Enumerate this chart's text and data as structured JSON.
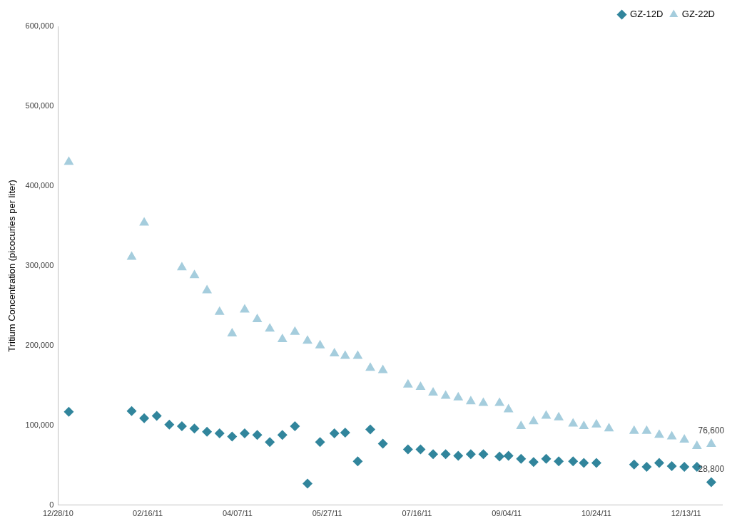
{
  "chart_data": {
    "type": "scatter",
    "ylabel": "Tritium Concentration (picocuries per liter)",
    "xlim": [
      "2010-12-28",
      "2012-01-02"
    ],
    "xticks": [
      {
        "value": "2010-12-28",
        "label": "12/28/10"
      },
      {
        "value": "2011-02-16",
        "label": "02/16/11"
      },
      {
        "value": "2011-04-07",
        "label": "04/07/11"
      },
      {
        "value": "2011-05-27",
        "label": "05/27/11"
      },
      {
        "value": "2011-07-16",
        "label": "07/16/11"
      },
      {
        "value": "2011-09-04",
        "label": "09/04/11"
      },
      {
        "value": "2011-10-24",
        "label": "10/24/11"
      },
      {
        "value": "2011-12-13",
        "label": "12/13/11"
      }
    ],
    "ylim": [
      0,
      600000
    ],
    "yticks": [
      0,
      {
        "value": 100000,
        "label": "100,000"
      },
      {
        "value": 200000,
        "label": "200,000"
      },
      {
        "value": 300000,
        "label": "300,000"
      },
      {
        "value": 400000,
        "label": "400,000"
      },
      {
        "value": 500000,
        "label": "500,000"
      },
      {
        "value": 600000,
        "label": "600,000"
      }
    ],
    "grid": false,
    "legend": "top right",
    "series": [
      {
        "name": "GZ-12D",
        "color": "#31859c",
        "marker": "diamond",
        "x": [
          "2011-01-03",
          "2011-02-07",
          "2011-02-14",
          "2011-02-21",
          "2011-02-28",
          "2011-03-07",
          "2011-03-14",
          "2011-03-21",
          "2011-03-28",
          "2011-04-04",
          "2011-04-11",
          "2011-04-18",
          "2011-04-25",
          "2011-05-02",
          "2011-05-09",
          "2011-05-16",
          "2011-05-23",
          "2011-05-31",
          "2011-06-06",
          "2011-06-13",
          "2011-06-20",
          "2011-06-27",
          "2011-07-11",
          "2011-07-18",
          "2011-07-25",
          "2011-08-01",
          "2011-08-08",
          "2011-08-15",
          "2011-08-22",
          "2011-08-31",
          "2011-09-05",
          "2011-09-12",
          "2011-09-19",
          "2011-09-26",
          "2011-10-03",
          "2011-10-11",
          "2011-10-17",
          "2011-10-24",
          "2011-11-14",
          "2011-11-21",
          "2011-11-28",
          "2011-12-05",
          "2011-12-12",
          "2011-12-19",
          "2011-12-27"
        ],
        "values": [
          117000,
          118000,
          109000,
          112000,
          101000,
          99000,
          96000,
          92000,
          90000,
          86000,
          90000,
          88000,
          79000,
          88000,
          99000,
          27000,
          79000,
          90000,
          91000,
          55000,
          95000,
          77000,
          70000,
          70000,
          64000,
          64000,
          62000,
          64000,
          64000,
          61000,
          62000,
          58000,
          54000,
          58000,
          55000,
          55000,
          53000,
          53000,
          51000,
          48000,
          53000,
          49000,
          48000,
          48000,
          28800
        ],
        "value_labels": [
          null,
          null,
          null,
          null,
          null,
          null,
          null,
          null,
          null,
          null,
          null,
          null,
          null,
          null,
          null,
          null,
          null,
          null,
          null,
          null,
          null,
          null,
          null,
          null,
          null,
          null,
          null,
          null,
          null,
          null,
          null,
          null,
          null,
          null,
          null,
          null,
          null,
          null,
          null,
          null,
          null,
          null,
          null,
          null,
          "28,800"
        ]
      },
      {
        "name": "GZ-22D",
        "color": "#a5cddd",
        "marker": "triangle",
        "x": [
          "2011-01-03",
          "2011-02-07",
          "2011-02-14",
          "2011-03-07",
          "2011-03-14",
          "2011-03-21",
          "2011-03-28",
          "2011-04-04",
          "2011-04-11",
          "2011-04-18",
          "2011-04-25",
          "2011-05-02",
          "2011-05-09",
          "2011-05-16",
          "2011-05-23",
          "2011-05-31",
          "2011-06-06",
          "2011-06-13",
          "2011-06-20",
          "2011-06-27",
          "2011-07-11",
          "2011-07-18",
          "2011-07-25",
          "2011-08-01",
          "2011-08-08",
          "2011-08-15",
          "2011-08-22",
          "2011-08-31",
          "2011-09-05",
          "2011-09-12",
          "2011-09-19",
          "2011-09-26",
          "2011-10-03",
          "2011-10-11",
          "2011-10-17",
          "2011-10-24",
          "2011-10-31",
          "2011-11-14",
          "2011-11-21",
          "2011-11-28",
          "2011-12-05",
          "2011-12-12",
          "2011-12-19",
          "2011-12-27"
        ],
        "values": [
          430000,
          311000,
          354000,
          298000,
          288000,
          269000,
          242000,
          215000,
          245000,
          233000,
          221000,
          208000,
          217000,
          206000,
          200000,
          190000,
          187000,
          187000,
          172000,
          169000,
          151000,
          148000,
          141000,
          137000,
          135000,
          130000,
          128000,
          128000,
          120000,
          99000,
          105000,
          112000,
          110000,
          102000,
          99000,
          101000,
          96000,
          93000,
          93000,
          88000,
          86000,
          82000,
          74000,
          76600
        ],
        "value_labels": [
          null,
          null,
          null,
          null,
          null,
          null,
          null,
          null,
          null,
          null,
          null,
          null,
          null,
          null,
          null,
          null,
          null,
          null,
          null,
          null,
          null,
          null,
          null,
          null,
          null,
          null,
          null,
          null,
          null,
          null,
          null,
          null,
          null,
          null,
          null,
          null,
          null,
          null,
          null,
          null,
          null,
          null,
          null,
          "76,600"
        ]
      }
    ]
  }
}
